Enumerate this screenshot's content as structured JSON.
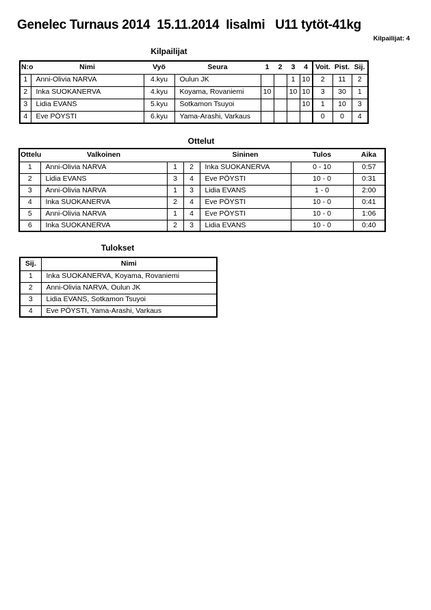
{
  "page": {
    "title": "Genelec Turnaus 2014  15.11.2014  Iisalmi   U11 tytöt-41kg",
    "competitors_count_label": "Kilpailijat: 4"
  },
  "kilpailijat": {
    "heading": "Kilpailijat",
    "columns": [
      "N:o",
      "Nimi",
      "Vyö",
      "Seura",
      "1",
      "2",
      "3",
      "4",
      "Voit.",
      "Pist.",
      "Sij."
    ],
    "rows": [
      [
        "1",
        "Anni-Olivia NARVA",
        "4.kyu",
        "Oulun JK",
        "",
        "",
        "1",
        "10",
        "2",
        "11",
        "2"
      ],
      [
        "2",
        "Inka SUOKANERVA",
        "4.kyu",
        "Koyama, Rovaniemi",
        "10",
        "",
        "10",
        "10",
        "3",
        "30",
        "1"
      ],
      [
        "3",
        "Lidia EVANS",
        "5.kyu",
        "Sotkamon Tsuyoi",
        "",
        "",
        "",
        "10",
        "1",
        "10",
        "3"
      ],
      [
        "4",
        "Eve PÖYSTI",
        "6.kyu",
        "Yama-Arashi, Varkaus",
        "",
        "",
        "",
        "",
        "0",
        "0",
        "4"
      ]
    ]
  },
  "ottelut": {
    "heading": "Ottelut",
    "columns": [
      "Ottelu",
      "Valkoinen",
      "",
      "",
      "Sininen",
      "Tulos",
      "Aika"
    ],
    "rows": [
      [
        "1",
        "Anni-Olivia NARVA",
        "1",
        "2",
        "Inka SUOKANERVA",
        "0 - 10",
        "0:57"
      ],
      [
        "2",
        "Lidia EVANS",
        "3",
        "4",
        "Eve PÖYSTI",
        "10 - 0",
        "0:31"
      ],
      [
        "3",
        "Anni-Olivia NARVA",
        "1",
        "3",
        "Lidia EVANS",
        "1 - 0",
        "2:00"
      ],
      [
        "4",
        "Inka SUOKANERVA",
        "2",
        "4",
        "Eve PÖYSTI",
        "10 - 0",
        "0:41"
      ],
      [
        "5",
        "Anni-Olivia NARVA",
        "1",
        "4",
        "Eve PÖYSTI",
        "10 - 0",
        "1:06"
      ],
      [
        "6",
        "Inka SUOKANERVA",
        "2",
        "3",
        "Lidia EVANS",
        "10 - 0",
        "0:40"
      ]
    ]
  },
  "tulokset": {
    "heading": "Tulokset",
    "columns": [
      "Sij.",
      "Nimi"
    ],
    "rows": [
      [
        "1",
        "Inka SUOKANERVA, Koyama, Rovaniemi"
      ],
      [
        "2",
        "Anni-Olivia NARVA, Oulun JK"
      ],
      [
        "3",
        "Lidia EVANS, Sotkamon Tsuyoi"
      ],
      [
        "4",
        "Eve PÖYSTI, Yama-Arashi, Varkaus"
      ]
    ]
  },
  "table_styles": {
    "kilpailijat": {
      "left_cols": [
        1,
        3
      ],
      "left_head_cols": [
        0
      ]
    },
    "ottelut": {
      "left_cols": [
        1,
        4
      ],
      "left_head_cols": [
        0
      ]
    },
    "tulokset": {
      "left_cols": [
        1
      ],
      "left_head_cols": []
    }
  }
}
